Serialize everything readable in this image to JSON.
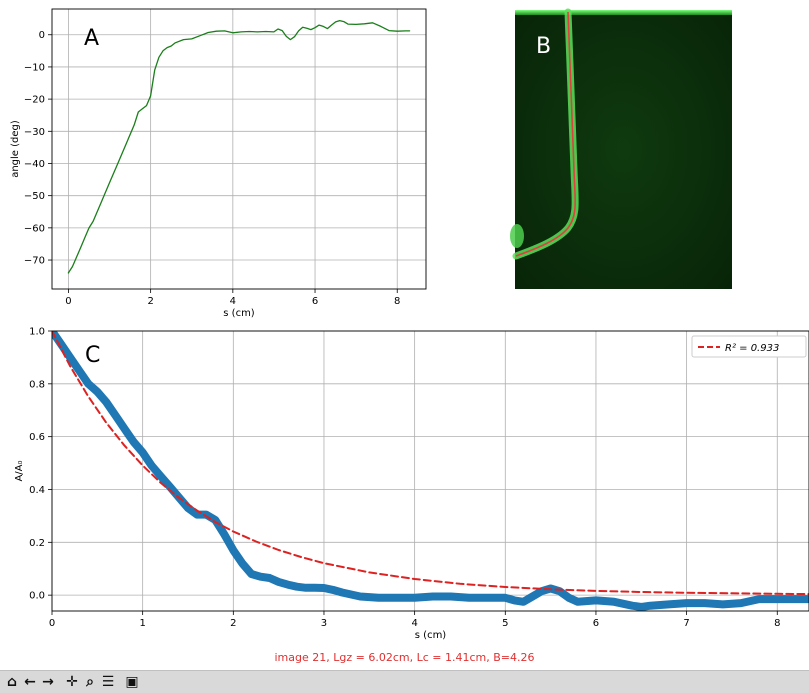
{
  "chart_data": [
    {
      "type": "line",
      "panel_label": "A",
      "xlabel": "s (cm)",
      "ylabel": "angle (deg)",
      "xlim": [
        -0.4,
        8.7
      ],
      "ylim": [
        -79,
        8
      ],
      "xticks": [
        0,
        2,
        4,
        6,
        8
      ],
      "xtick_labels": [
        "0",
        "2",
        "4",
        "6",
        "8"
      ],
      "yticks": [
        0,
        -10,
        -20,
        -30,
        -40,
        -50,
        -60,
        -70
      ],
      "ytick_labels": [
        "0",
        "−10",
        "−20",
        "−30",
        "−40",
        "−50",
        "−60",
        "−70"
      ],
      "grid": true,
      "series": [
        {
          "color": "#1a7f1a",
          "x": [
            0,
            0.1,
            0.2,
            0.3,
            0.4,
            0.5,
            0.6,
            0.8,
            1.0,
            1.2,
            1.4,
            1.6,
            1.7,
            1.8,
            1.9,
            2.0,
            2.1,
            2.2,
            2.3,
            2.4,
            2.5,
            2.6,
            2.8,
            3.0,
            3.2,
            3.4,
            3.6,
            3.8,
            4.0,
            4.2,
            4.4,
            4.6,
            4.8,
            5.0,
            5.1,
            5.2,
            5.3,
            5.4,
            5.5,
            5.6,
            5.7,
            5.8,
            5.9,
            6.0,
            6.1,
            6.2,
            6.3,
            6.4,
            6.5,
            6.6,
            6.7,
            6.8,
            7.0,
            7.2,
            7.4,
            7.6,
            7.8,
            8.0,
            8.2,
            8.3
          ],
          "y": [
            -74,
            -72,
            -69,
            -66,
            -63,
            -60,
            -58,
            -52,
            -46,
            -40,
            -34,
            -28,
            -24,
            -23,
            -22,
            -19,
            -11,
            -7,
            -5,
            -4,
            -3.5,
            -2.5,
            -1.5,
            -1.3,
            -0.3,
            0.7,
            1.1,
            1.2,
            0.6,
            0.9,
            1.0,
            0.9,
            1.0,
            0.9,
            1.8,
            1.3,
            -0.5,
            -1.5,
            -0.6,
            1.2,
            2.3,
            2.0,
            1.6,
            2.2,
            3.0,
            2.6,
            1.9,
            3.0,
            4.0,
            4.4,
            4.1,
            3.3,
            3.2,
            3.4,
            3.7,
            2.6,
            1.3,
            1.1,
            1.2,
            1.2
          ]
        }
      ]
    },
    {
      "type": "line",
      "panel_label": "C",
      "xlabel": "s (cm)",
      "ylabel": "A/A₀",
      "xlim": [
        0,
        8.35
      ],
      "ylim": [
        -0.06,
        1.0
      ],
      "xticks": [
        0,
        1,
        2,
        3,
        4,
        5,
        6,
        7,
        8
      ],
      "xtick_labels": [
        "0",
        "1",
        "2",
        "3",
        "4",
        "5",
        "6",
        "7",
        "8"
      ],
      "yticks": [
        0.0,
        0.2,
        0.4,
        0.6,
        0.8,
        1.0
      ],
      "ytick_labels": [
        "0.0",
        "0.2",
        "0.4",
        "0.6",
        "0.8",
        "1.0"
      ],
      "grid": true,
      "legend_position": "top-right",
      "series": [
        {
          "color": "#1f77b4",
          "x": [
            0,
            0.1,
            0.2,
            0.3,
            0.4,
            0.5,
            0.6,
            0.7,
            0.8,
            0.9,
            1.0,
            1.1,
            1.2,
            1.3,
            1.4,
            1.5,
            1.6,
            1.7,
            1.8,
            1.9,
            2.0,
            2.1,
            2.2,
            2.3,
            2.4,
            2.5,
            2.6,
            2.7,
            2.8,
            2.9,
            3.0,
            3.1,
            3.2,
            3.4,
            3.6,
            3.8,
            4.0,
            4.2,
            4.4,
            4.6,
            4.8,
            5.0,
            5.1,
            5.2,
            5.3,
            5.4,
            5.5,
            5.6,
            5.7,
            5.8,
            6.0,
            6.2,
            6.4,
            6.5,
            6.6,
            6.8,
            7.0,
            7.2,
            7.4,
            7.6,
            7.8,
            8.0,
            8.2,
            8.35
          ],
          "y": [
            1.0,
            0.95,
            0.9,
            0.85,
            0.8,
            0.77,
            0.73,
            0.68,
            0.63,
            0.58,
            0.54,
            0.49,
            0.45,
            0.41,
            0.37,
            0.33,
            0.305,
            0.305,
            0.285,
            0.23,
            0.17,
            0.12,
            0.08,
            0.07,
            0.065,
            0.05,
            0.04,
            0.032,
            0.028,
            0.028,
            0.027,
            0.02,
            0.01,
            -0.005,
            -0.01,
            -0.01,
            -0.01,
            -0.005,
            -0.005,
            -0.01,
            -0.01,
            -0.01,
            -0.02,
            -0.025,
            -0.005,
            0.015,
            0.025,
            0.015,
            -0.01,
            -0.025,
            -0.02,
            -0.025,
            -0.04,
            -0.045,
            -0.04,
            -0.035,
            -0.03,
            -0.03,
            -0.035,
            -0.03,
            -0.015,
            -0.015,
            -0.015,
            -0.015
          ]
        },
        {
          "name": "R² = 0.933",
          "color": "#dd2222",
          "dashed": true,
          "x": [
            0,
            0.2,
            0.4,
            0.6,
            0.8,
            1.0,
            1.2,
            1.4,
            1.6,
            1.8,
            2.0,
            2.25,
            2.5,
            2.75,
            3.0,
            3.5,
            4.0,
            4.5,
            5.0,
            5.5,
            6.0,
            6.5,
            7.0,
            7.5,
            8.0,
            8.35
          ],
          "y": [
            1.0,
            0.867,
            0.752,
            0.652,
            0.566,
            0.491,
            0.425,
            0.369,
            0.32,
            0.277,
            0.241,
            0.203,
            0.171,
            0.144,
            0.121,
            0.086,
            0.061,
            0.043,
            0.031,
            0.022,
            0.016,
            0.012,
            0.009,
            0.007,
            0.005,
            0.004
          ]
        }
      ]
    }
  ],
  "panel_b": {
    "label": "B"
  },
  "status_text": "image 21, Lgz = 6.02cm, Lc = 1.41cm, B=4.26",
  "colors": {
    "status": "#e03030",
    "grid": "#b0b0b0",
    "toolbar_bg": "#d9d9d9"
  },
  "toolbar": [
    {
      "name": "home-icon",
      "glyph": "⌂"
    },
    {
      "name": "back-icon",
      "glyph": "←"
    },
    {
      "name": "forward-icon",
      "glyph": "→"
    },
    {
      "name": "pan-icon",
      "glyph": "✛"
    },
    {
      "name": "zoom-icon",
      "glyph": "⌕"
    },
    {
      "name": "configure-subplots-icon",
      "glyph": "☰"
    },
    {
      "name": "save-icon",
      "glyph": "▣"
    }
  ]
}
